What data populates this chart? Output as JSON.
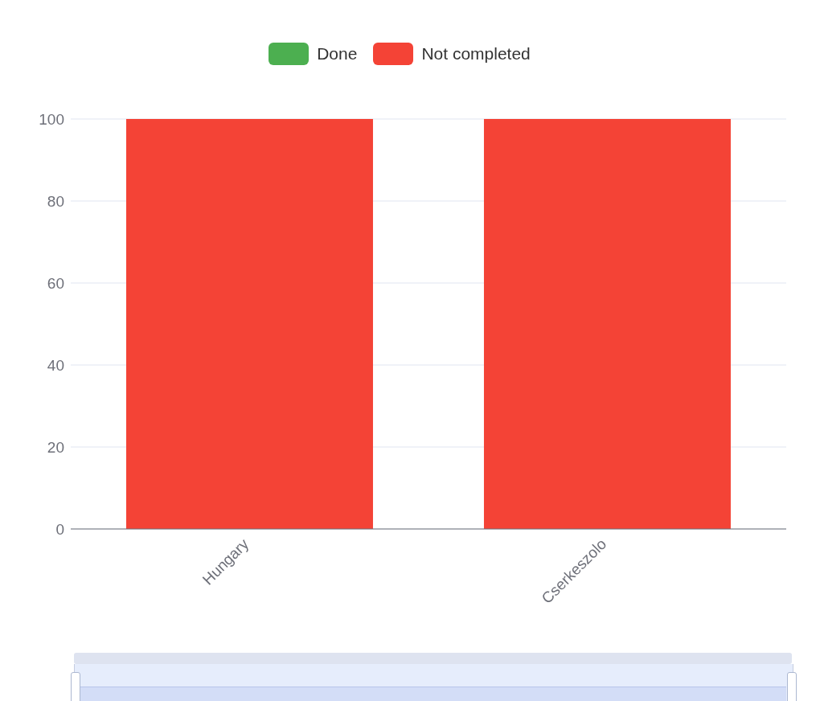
{
  "chart_data": {
    "type": "bar",
    "stacked": true,
    "categories": [
      "Hungary",
      "Cserkeszolo"
    ],
    "series": [
      {
        "name": "Done",
        "color": "#4caf50",
        "values": [
          0,
          0
        ]
      },
      {
        "name": "Not completed",
        "color": "#f44336",
        "values": [
          100,
          100
        ]
      }
    ],
    "ylim": [
      0,
      100
    ],
    "yticks": [
      0,
      20,
      40,
      60,
      80,
      100
    ],
    "grid": "y",
    "legend": "top"
  }
}
